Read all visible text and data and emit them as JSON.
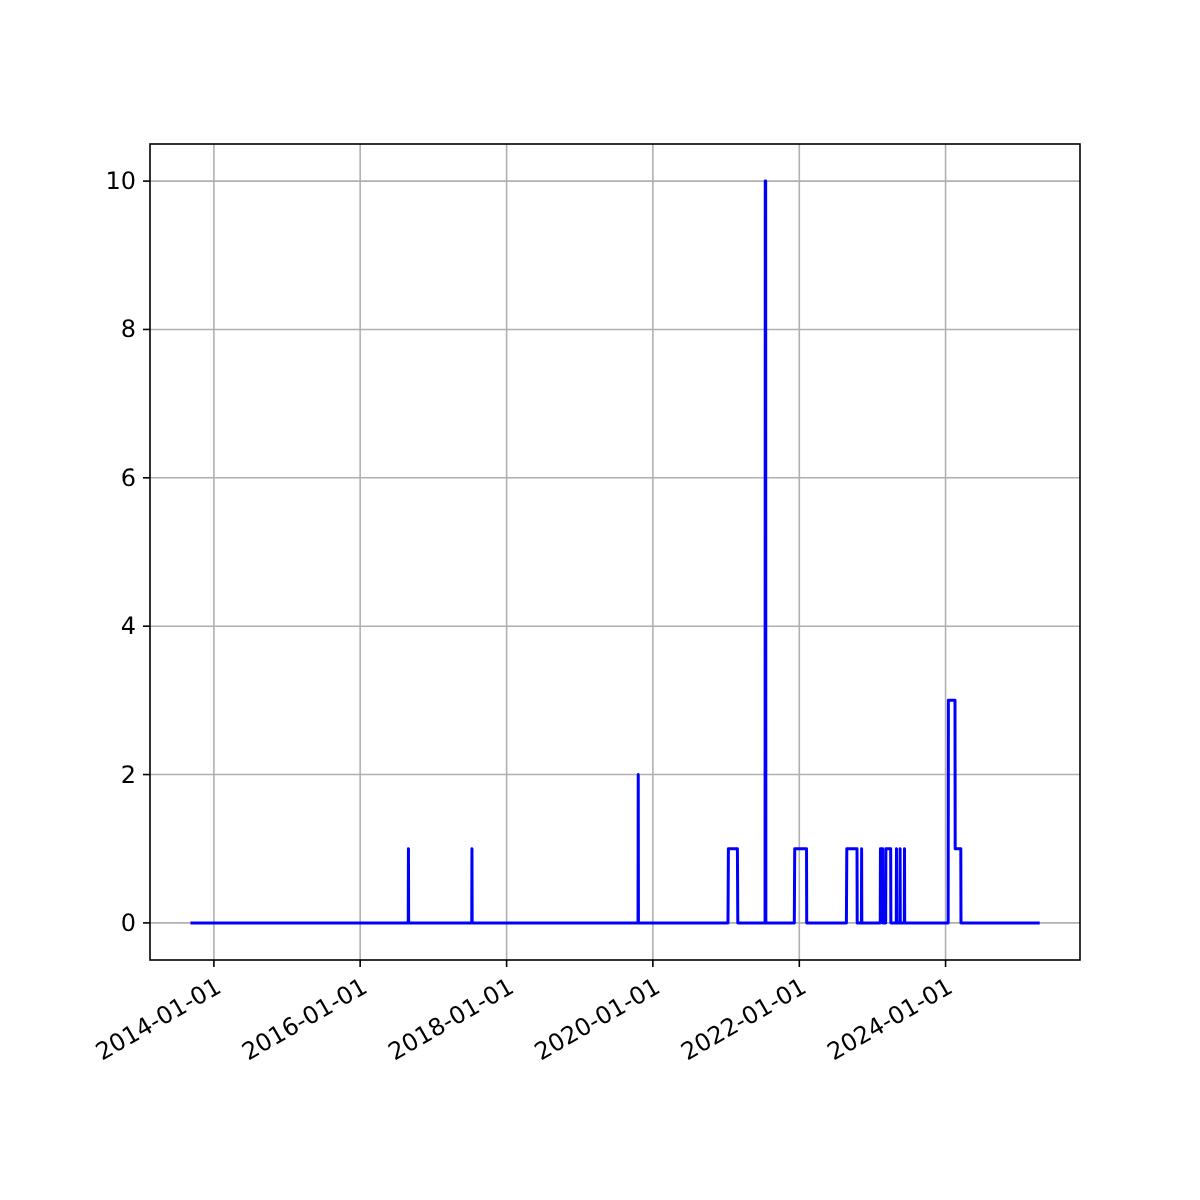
{
  "chart_data": {
    "type": "line",
    "x": [
      "2013-09-06",
      "2016-08-28",
      "2016-08-29",
      "2016-08-30",
      "2017-07-11",
      "2017-07-12",
      "2017-07-13",
      "2019-10-19",
      "2019-10-20",
      "2019-10-21",
      "2021-01-10",
      "2021-01-12",
      "2021-02-26",
      "2021-02-28",
      "2021-07-14",
      "2021-07-15",
      "2021-07-17",
      "2021-07-18",
      "2021-12-07",
      "2021-12-09",
      "2022-02-06",
      "2022-02-07",
      "2022-08-24",
      "2022-08-26",
      "2022-10-16",
      "2022-10-17",
      "2022-11-07",
      "2022-11-08",
      "2022-11-09",
      "2023-02-09",
      "2023-02-10",
      "2023-02-21",
      "2023-02-22",
      "2023-03-08",
      "2023-03-09",
      "2023-04-02",
      "2023-04-03",
      "2023-04-30",
      "2023-05-01",
      "2023-05-02",
      "2023-05-18",
      "2023-05-19",
      "2023-05-20",
      "2023-06-09",
      "2023-06-10",
      "2023-06-11",
      "2024-01-14",
      "2024-01-15",
      "2024-02-17",
      "2024-02-18",
      "2024-03-17",
      "2024-03-18",
      "2025-04-15"
    ],
    "series": [
      {
        "color": "#0000ff",
        "values": [
          0,
          0,
          1,
          0,
          0,
          1,
          0,
          0,
          2,
          0,
          0,
          1,
          1,
          0,
          0,
          10,
          10,
          0,
          0,
          1,
          1,
          0,
          0,
          1,
          1,
          0,
          0,
          1,
          0,
          0,
          1,
          1,
          0,
          0,
          1,
          1,
          0,
          0,
          1,
          0,
          0,
          1,
          0,
          0,
          1,
          0,
          0,
          3,
          3,
          1,
          1,
          0,
          0
        ]
      }
    ],
    "xlim": [
      "2013-02-16",
      "2025-11-02"
    ],
    "xticks": [
      {
        "value": "2014-01-01",
        "label": "2014-01-01"
      },
      {
        "value": "2016-01-01",
        "label": "2016-01-01"
      },
      {
        "value": "2018-01-01",
        "label": "2018-01-01"
      },
      {
        "value": "2020-01-01",
        "label": "2020-01-01"
      },
      {
        "value": "2022-01-01",
        "label": "2022-01-01"
      },
      {
        "value": "2024-01-01",
        "label": "2024-01-01"
      }
    ],
    "ylim": [
      -0.5,
      10.5
    ],
    "yticks": [
      0,
      2,
      4,
      6,
      8,
      10
    ],
    "grid": true,
    "line_style": "solid"
  }
}
